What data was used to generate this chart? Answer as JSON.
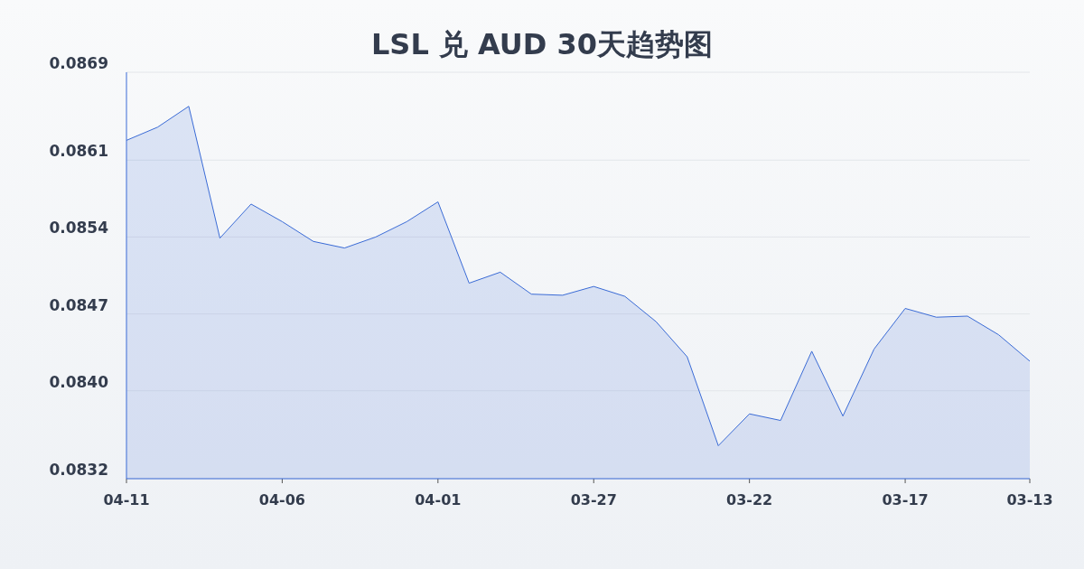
{
  "chart_data": {
    "type": "area",
    "title": "LSL 兑 AUD 30天趋势图",
    "x": [
      "--04-11",
      "--04-10",
      "--04-09",
      "--04-08",
      "--04-07",
      "--04-06",
      "--04-05",
      "--04-04",
      "--04-03",
      "--04-02",
      "--04-01",
      "--03-31",
      "--03-30",
      "--03-29",
      "--03-28",
      "--03-27",
      "--03-26",
      "--03-25",
      "--03-24",
      "--03-23",
      "--03-22",
      "--03-21",
      "--03-20",
      "--03-19",
      "--03-18",
      "--03-17",
      "--03-16",
      "--03-15",
      "--03-14",
      "--03-13"
    ],
    "series": [
      {
        "color": "#3a6bd6",
        "values": [
          0.08628,
          0.0864,
          0.08659,
          0.08539,
          0.0857,
          0.08554,
          0.08536,
          0.0853,
          0.0854,
          0.08554,
          0.08572,
          0.08498,
          0.08508,
          0.08488,
          0.08487,
          0.08495,
          0.08486,
          0.08463,
          0.08431,
          0.0835,
          0.08379,
          0.08373,
          0.08436,
          0.08377,
          0.08438,
          0.08475,
          0.08467,
          0.08468,
          0.08451,
          0.08427
        ]
      }
    ],
    "xlim": [
      "--04-11",
      "--03-13"
    ],
    "xticks": [
      {
        "value": "--04-11",
        "label": "04-11"
      },
      {
        "value": "--04-06",
        "label": "04-06"
      },
      {
        "value": "--04-01",
        "label": "04-01"
      },
      {
        "value": "--03-27",
        "label": "03-27"
      },
      {
        "value": "--03-22",
        "label": "03-22"
      },
      {
        "value": "--03-17",
        "label": "03-17"
      },
      {
        "value": "--03-13",
        "label": "03-13"
      }
    ],
    "ylim": [
      0.0832,
      0.0869
    ],
    "yticks": [
      0.0832,
      {
        "value": 0.084,
        "label": "0.0840"
      },
      0.0847,
      0.0854,
      0.0861,
      0.0869
    ],
    "grid": "y"
  }
}
